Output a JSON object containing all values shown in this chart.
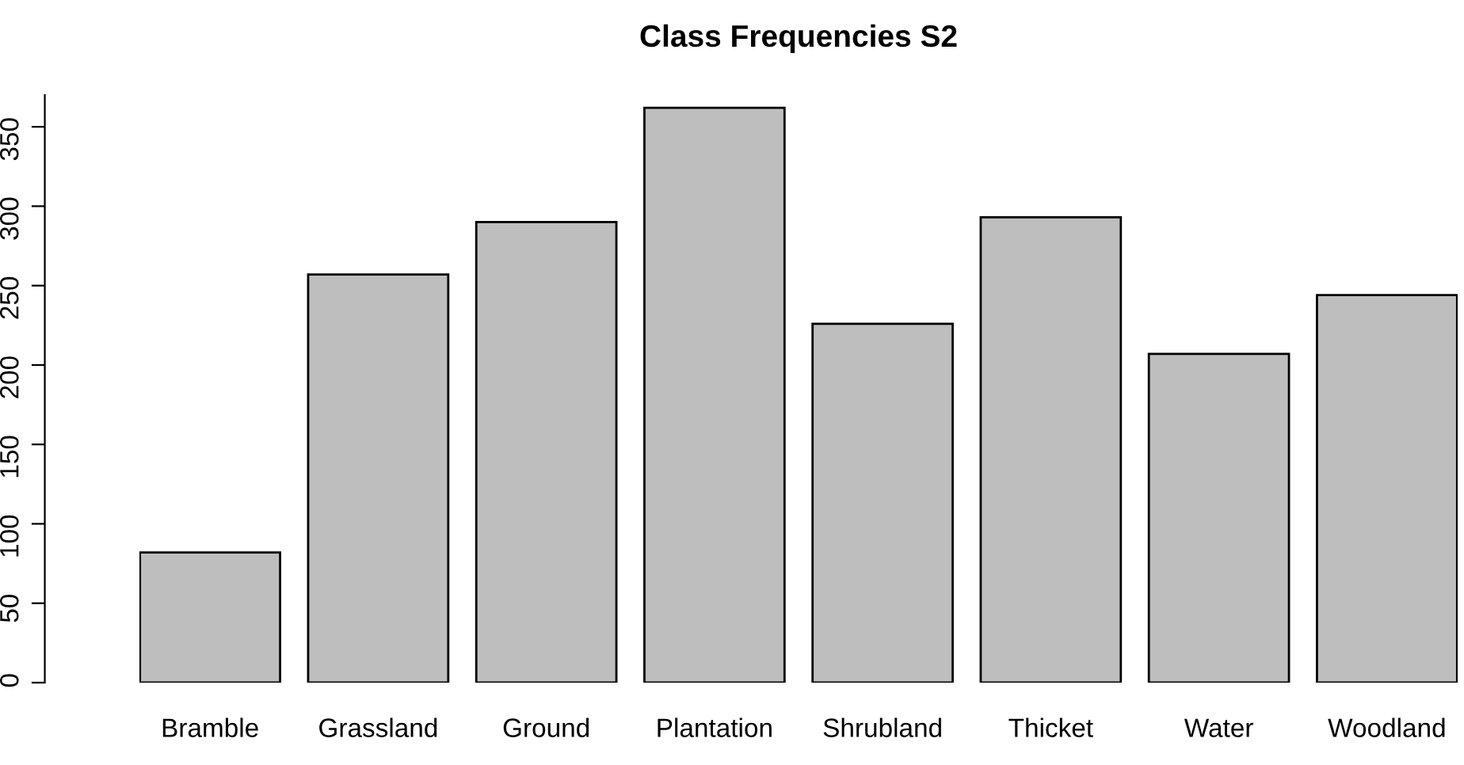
{
  "chart_data": {
    "type": "bar",
    "title": "Class Frequencies S2",
    "categories": [
      "Bramble",
      "Grassland",
      "Ground",
      "Plantation",
      "Shrubland",
      "Thicket",
      "Water",
      "Woodland"
    ],
    "values": [
      82,
      257,
      290,
      362,
      226,
      293,
      207,
      244
    ],
    "color": "#bebebe",
    "ylim": [
      0,
      370
    ],
    "yticks": [
      0,
      50,
      100,
      150,
      200,
      250,
      300,
      350
    ],
    "grid": false,
    "legend": false
  }
}
